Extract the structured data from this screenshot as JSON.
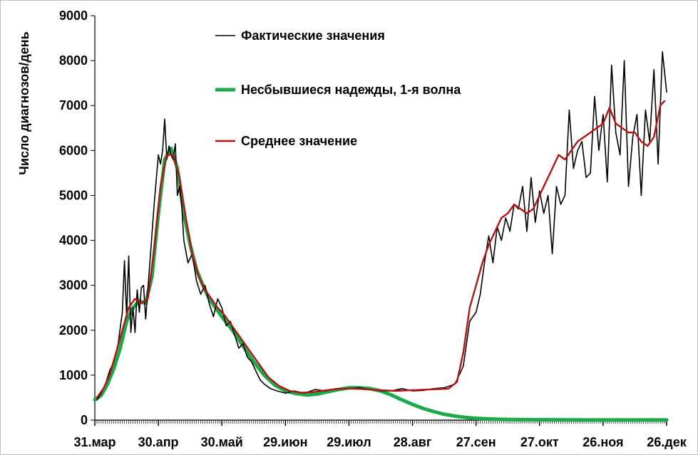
{
  "chart_data": {
    "type": "line",
    "title": "",
    "xlabel": "",
    "ylabel": "Число диагнозов/день",
    "ylim": [
      0,
      9000
    ],
    "yticks": [
      0,
      1000,
      2000,
      3000,
      4000,
      5000,
      6000,
      7000,
      8000,
      9000
    ],
    "xlim": [
      "2020-03-31",
      "2020-12-26"
    ],
    "xtick_labels": [
      "31.мар",
      "30.апр",
      "30.май",
      "29.июн",
      "29.июл",
      "28.авг",
      "27.сен",
      "27.окт",
      "26.ноя",
      "26.дек"
    ],
    "xtick_dates": [
      "2020-03-31",
      "2020-04-30",
      "2020-05-30",
      "2020-06-29",
      "2020-07-29",
      "2020-08-28",
      "2020-09-27",
      "2020-10-27",
      "2020-11-26",
      "2020-12-26"
    ],
    "grid": false,
    "legend_position": "top-center",
    "series": [
      {
        "name": "Фактические значения",
        "color": "#000000",
        "x": [
          "2020-04-01",
          "2020-04-03",
          "2020-04-05",
          "2020-04-07",
          "2020-04-09",
          "2020-04-11",
          "2020-04-13",
          "2020-04-14",
          "2020-04-15",
          "2020-04-16",
          "2020-04-17",
          "2020-04-18",
          "2020-04-19",
          "2020-04-20",
          "2020-04-21",
          "2020-04-22",
          "2020-04-23",
          "2020-04-24",
          "2020-04-26",
          "2020-04-28",
          "2020-04-30",
          "2020-05-01",
          "2020-05-02",
          "2020-05-03",
          "2020-05-04",
          "2020-05-05",
          "2020-05-06",
          "2020-05-07",
          "2020-05-08",
          "2020-05-09",
          "2020-05-10",
          "2020-05-11",
          "2020-05-12",
          "2020-05-14",
          "2020-05-16",
          "2020-05-18",
          "2020-05-20",
          "2020-05-22",
          "2020-05-24",
          "2020-05-26",
          "2020-05-28",
          "2020-05-30",
          "2020-06-01",
          "2020-06-03",
          "2020-06-05",
          "2020-06-07",
          "2020-06-09",
          "2020-06-11",
          "2020-06-13",
          "2020-06-15",
          "2020-06-17",
          "2020-06-19",
          "2020-06-22",
          "2020-06-25",
          "2020-06-29",
          "2020-07-03",
          "2020-07-08",
          "2020-07-13",
          "2020-07-18",
          "2020-07-23",
          "2020-07-29",
          "2020-08-03",
          "2020-08-08",
          "2020-08-13",
          "2020-08-18",
          "2020-08-23",
          "2020-08-28",
          "2020-09-02",
          "2020-09-07",
          "2020-09-12",
          "2020-09-17",
          "2020-09-21",
          "2020-09-24",
          "2020-09-27",
          "2020-09-29",
          "2020-10-01",
          "2020-10-03",
          "2020-10-05",
          "2020-10-07",
          "2020-10-09",
          "2020-10-11",
          "2020-10-13",
          "2020-10-15",
          "2020-10-17",
          "2020-10-19",
          "2020-10-21",
          "2020-10-23",
          "2020-10-25",
          "2020-10-27",
          "2020-10-29",
          "2020-10-31",
          "2020-11-02",
          "2020-11-04",
          "2020-11-06",
          "2020-11-08",
          "2020-11-10",
          "2020-11-12",
          "2020-11-14",
          "2020-11-16",
          "2020-11-18",
          "2020-11-20",
          "2020-11-22",
          "2020-11-24",
          "2020-11-26",
          "2020-11-28",
          "2020-11-30",
          "2020-12-02",
          "2020-12-04",
          "2020-12-06",
          "2020-12-08",
          "2020-12-10",
          "2020-12-12",
          "2020-12-14",
          "2020-12-16",
          "2020-12-18",
          "2020-12-20",
          "2020-12-22",
          "2020-12-24",
          "2020-12-26"
        ],
        "y": [
          450,
          600,
          800,
          1100,
          1300,
          1700,
          2400,
          3550,
          2300,
          3650,
          1950,
          2500,
          1950,
          2900,
          2400,
          2950,
          3000,
          2250,
          3500,
          4800,
          5900,
          5700,
          6000,
          6700,
          5800,
          6100,
          5900,
          5800,
          6150,
          5000,
          5200,
          4800,
          4000,
          3500,
          3700,
          3100,
          2800,
          3000,
          2600,
          2300,
          2700,
          2500,
          2100,
          2200,
          1900,
          1600,
          1700,
          1400,
          1300,
          1100,
          900,
          800,
          700,
          650,
          600,
          650,
          600,
          680,
          650,
          700,
          700,
          720,
          680,
          650,
          650,
          700,
          650,
          660,
          700,
          720,
          800,
          1200,
          2200,
          2400,
          2800,
          3500,
          4100,
          3500,
          4300,
          4000,
          4500,
          4200,
          4800,
          4700,
          5200,
          4200,
          5400,
          4400,
          5100,
          4600,
          5000,
          3700,
          5200,
          4800,
          5000,
          6900,
          5600,
          6000,
          6200,
          5400,
          5500,
          7200,
          6000,
          6800,
          5300,
          7900,
          6400,
          5900,
          8000,
          5200,
          6300,
          6800,
          5000,
          6900,
          6200,
          7800,
          5700,
          8200,
          7300
        ]
      },
      {
        "name": "Несбывшиеся надежды, 1-я волна",
        "color": "#1aaa4a",
        "x": [
          "2020-03-31",
          "2020-04-03",
          "2020-04-06",
          "2020-04-09",
          "2020-04-12",
          "2020-04-15",
          "2020-04-18",
          "2020-04-21",
          "2020-04-24",
          "2020-04-27",
          "2020-04-30",
          "2020-05-03",
          "2020-05-06",
          "2020-05-09",
          "2020-05-12",
          "2020-05-15",
          "2020-05-18",
          "2020-05-21",
          "2020-05-24",
          "2020-05-27",
          "2020-05-30",
          "2020-06-04",
          "2020-06-09",
          "2020-06-14",
          "2020-06-19",
          "2020-06-24",
          "2020-06-29",
          "2020-07-04",
          "2020-07-09",
          "2020-07-14",
          "2020-07-19",
          "2020-07-24",
          "2020-07-29",
          "2020-08-03",
          "2020-08-08",
          "2020-08-13",
          "2020-08-18",
          "2020-08-23",
          "2020-08-28",
          "2020-09-02",
          "2020-09-07",
          "2020-09-12",
          "2020-09-17",
          "2020-09-22",
          "2020-09-27",
          "2020-10-02",
          "2020-10-07",
          "2020-10-12",
          "2020-10-17",
          "2020-10-22",
          "2020-10-27",
          "2020-11-06",
          "2020-11-16",
          "2020-11-26",
          "2020-12-06",
          "2020-12-16",
          "2020-12-26"
        ],
        "y": [
          450,
          550,
          800,
          1150,
          1600,
          2200,
          2500,
          2650,
          2600,
          3200,
          4600,
          5800,
          6050,
          5600,
          4600,
          3900,
          3350,
          3000,
          2700,
          2500,
          2300,
          2000,
          1650,
          1300,
          1000,
          780,
          650,
          590,
          560,
          580,
          630,
          680,
          720,
          720,
          700,
          650,
          560,
          450,
          350,
          260,
          190,
          130,
          90,
          60,
          40,
          28,
          20,
          15,
          12,
          10,
          8,
          6,
          5,
          5,
          5,
          5,
          5
        ]
      },
      {
        "name": "Среднее значение",
        "color": "#b41414",
        "x": [
          "2020-04-01",
          "2020-04-04",
          "2020-04-07",
          "2020-04-10",
          "2020-04-13",
          "2020-04-16",
          "2020-04-19",
          "2020-04-22",
          "2020-04-25",
          "2020-04-28",
          "2020-05-01",
          "2020-05-04",
          "2020-05-07",
          "2020-05-10",
          "2020-05-13",
          "2020-05-16",
          "2020-05-19",
          "2020-05-22",
          "2020-05-25",
          "2020-05-28",
          "2020-05-31",
          "2020-06-03",
          "2020-06-06",
          "2020-06-09",
          "2020-06-12",
          "2020-06-15",
          "2020-06-18",
          "2020-06-21",
          "2020-06-26",
          "2020-07-01",
          "2020-07-06",
          "2020-07-11",
          "2020-07-16",
          "2020-07-21",
          "2020-07-26",
          "2020-07-31",
          "2020-08-05",
          "2020-08-10",
          "2020-08-15",
          "2020-08-20",
          "2020-08-25",
          "2020-08-30",
          "2020-09-04",
          "2020-09-09",
          "2020-09-14",
          "2020-09-18",
          "2020-09-21",
          "2020-09-24",
          "2020-09-27",
          "2020-09-30",
          "2020-10-03",
          "2020-10-06",
          "2020-10-09",
          "2020-10-12",
          "2020-10-15",
          "2020-10-18",
          "2020-10-21",
          "2020-10-24",
          "2020-10-27",
          "2020-10-30",
          "2020-11-02",
          "2020-11-05",
          "2020-11-08",
          "2020-11-11",
          "2020-11-14",
          "2020-11-17",
          "2020-11-20",
          "2020-11-23",
          "2020-11-26",
          "2020-11-29",
          "2020-12-02",
          "2020-12-05",
          "2020-12-08",
          "2020-12-11",
          "2020-12-14",
          "2020-12-17",
          "2020-12-20",
          "2020-12-23",
          "2020-12-25"
        ],
        "y": [
          500,
          700,
          1000,
          1500,
          2000,
          2500,
          2700,
          2600,
          2700,
          3800,
          5200,
          5900,
          5900,
          5400,
          4500,
          3700,
          3200,
          2900,
          2700,
          2500,
          2350,
          2150,
          1950,
          1750,
          1550,
          1350,
          1150,
          950,
          760,
          650,
          610,
          620,
          650,
          680,
          700,
          700,
          690,
          670,
          660,
          650,
          660,
          670,
          680,
          690,
          700,
          850,
          1500,
          2500,
          3000,
          3500,
          3900,
          4200,
          4500,
          4600,
          4800,
          4700,
          4600,
          4700,
          5000,
          5300,
          5600,
          5900,
          5800,
          6000,
          6200,
          6300,
          6400,
          6500,
          6600,
          6950,
          6600,
          6500,
          6400,
          6400,
          6200,
          6100,
          6300,
          7000,
          7100
        ]
      }
    ]
  }
}
